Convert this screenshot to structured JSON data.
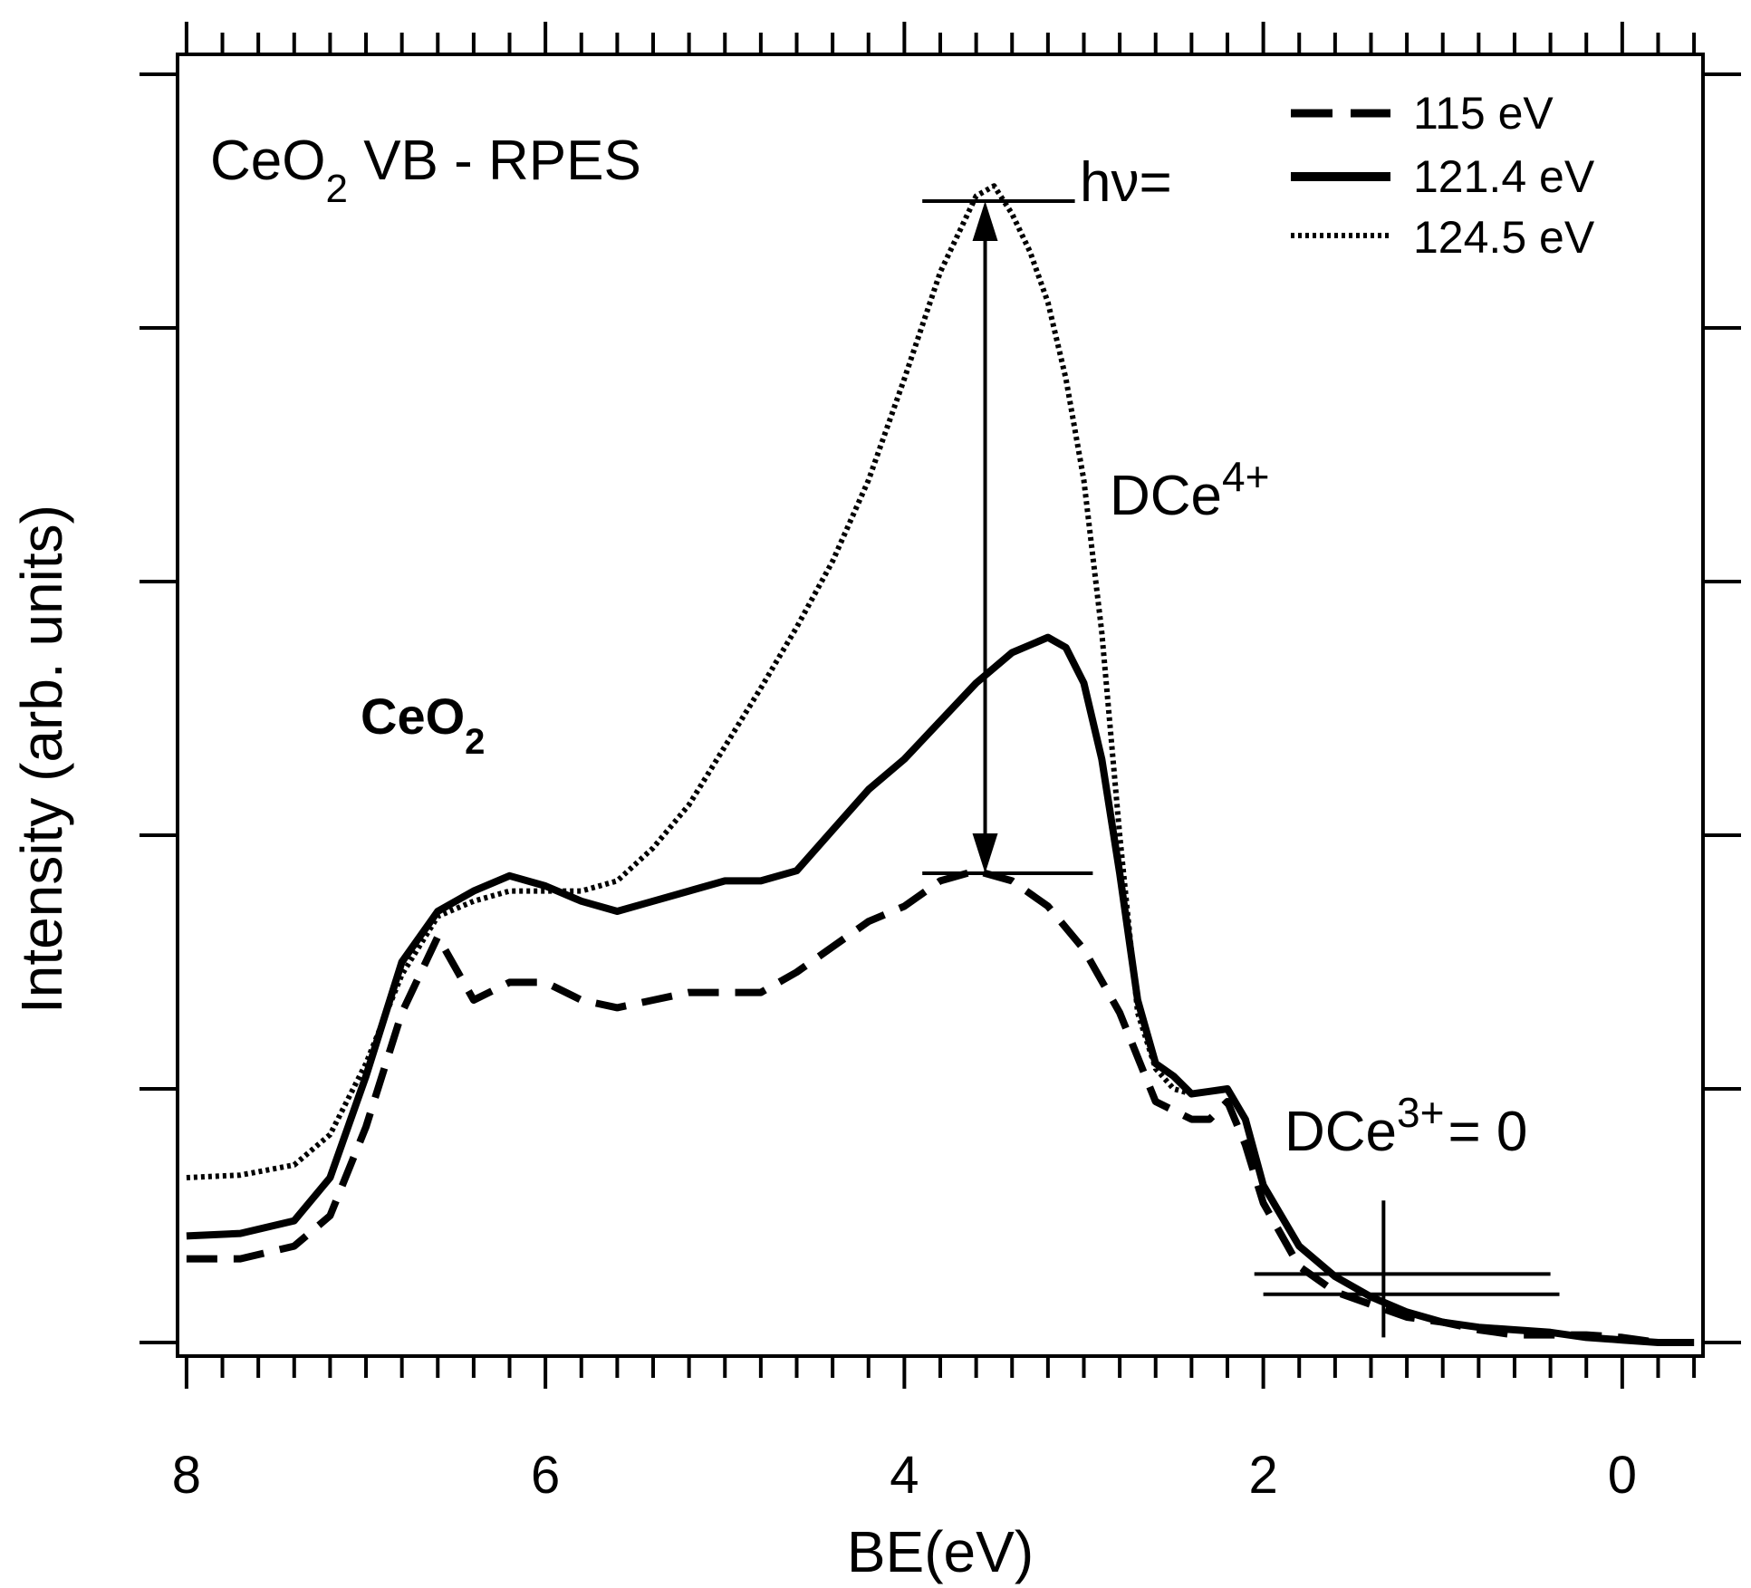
{
  "chart_data": {
    "type": "line",
    "title": "CeO2 VB - RPES",
    "title_main": "CeO",
    "title_sub": "2",
    "title_rest": " VB - RPES",
    "xlabel": "BE(eV)",
    "ylabel": "Intensity (arb. units)",
    "x_reversed": true,
    "xlim": [
      8.05,
      -0.45
    ],
    "ylim": [
      0,
      5.0
    ],
    "x_ticks": [
      8,
      6,
      4,
      2,
      0
    ],
    "x_tick_labels": [
      "8",
      "6",
      "4",
      "2",
      "0"
    ],
    "x_minor_step": 0.2,
    "y_ticks": [
      0,
      1,
      2,
      3,
      4,
      5
    ],
    "grid": false,
    "legend": {
      "position": "top-right",
      "prefix": "hν=",
      "entries": [
        {
          "label": "115 eV",
          "style": "dashed"
        },
        {
          "label": "121.4 eV",
          "style": "solid"
        },
        {
          "label": "124.5 eV",
          "style": "dotted"
        }
      ]
    },
    "series": [
      {
        "name": "115 eV",
        "style": "dashed",
        "x": [
          8.0,
          7.7,
          7.4,
          7.2,
          7.0,
          6.8,
          6.6,
          6.4,
          6.2,
          6.0,
          5.8,
          5.6,
          5.4,
          5.2,
          5.0,
          4.8,
          4.6,
          4.4,
          4.2,
          4.0,
          3.8,
          3.6,
          3.4,
          3.2,
          3.0,
          2.8,
          2.6,
          2.4,
          2.3,
          2.2,
          2.1,
          2.0,
          1.8,
          1.6,
          1.4,
          1.2,
          1.0,
          0.8,
          0.6,
          0.4,
          0.2,
          0.0,
          -0.2,
          -0.4
        ],
        "values": [
          0.33,
          0.33,
          0.38,
          0.5,
          0.85,
          1.3,
          1.6,
          1.35,
          1.42,
          1.42,
          1.35,
          1.32,
          1.35,
          1.38,
          1.38,
          1.38,
          1.46,
          1.56,
          1.66,
          1.72,
          1.82,
          1.86,
          1.82,
          1.72,
          1.55,
          1.3,
          0.95,
          0.88,
          0.88,
          0.95,
          0.78,
          0.55,
          0.3,
          0.2,
          0.15,
          0.1,
          0.08,
          0.05,
          0.03,
          0.03,
          0.03,
          0.02,
          0.0,
          0.0
        ]
      },
      {
        "name": "121.4 eV",
        "style": "solid",
        "x": [
          8.0,
          7.7,
          7.4,
          7.2,
          7.0,
          6.8,
          6.6,
          6.4,
          6.2,
          6.0,
          5.8,
          5.6,
          5.4,
          5.2,
          5.0,
          4.8,
          4.6,
          4.4,
          4.2,
          4.0,
          3.8,
          3.6,
          3.4,
          3.3,
          3.2,
          3.1,
          3.0,
          2.9,
          2.8,
          2.7,
          2.6,
          2.5,
          2.4,
          2.3,
          2.2,
          2.1,
          2.0,
          1.8,
          1.6,
          1.4,
          1.2,
          1.0,
          0.8,
          0.6,
          0.4,
          0.2,
          0.0,
          -0.2,
          -0.4
        ],
        "values": [
          0.42,
          0.43,
          0.48,
          0.65,
          1.05,
          1.5,
          1.7,
          1.78,
          1.84,
          1.8,
          1.74,
          1.7,
          1.74,
          1.78,
          1.82,
          1.82,
          1.86,
          2.02,
          2.18,
          2.3,
          2.45,
          2.6,
          2.72,
          2.75,
          2.78,
          2.74,
          2.6,
          2.3,
          1.85,
          1.35,
          1.1,
          1.05,
          0.98,
          0.99,
          1.0,
          0.88,
          0.62,
          0.38,
          0.26,
          0.18,
          0.12,
          0.08,
          0.06,
          0.05,
          0.04,
          0.02,
          0.01,
          0.0,
          0.0
        ]
      },
      {
        "name": "124.5 eV",
        "style": "dotted",
        "x": [
          8.0,
          7.7,
          7.4,
          7.2,
          7.0,
          6.8,
          6.6,
          6.4,
          6.2,
          6.0,
          5.8,
          5.6,
          5.4,
          5.2,
          5.0,
          4.8,
          4.6,
          4.4,
          4.2,
          4.0,
          3.8,
          3.6,
          3.5,
          3.4,
          3.3,
          3.2,
          3.1,
          3.0,
          2.9,
          2.8,
          2.7,
          2.6,
          2.5,
          2.4,
          2.3,
          2.2,
          2.1,
          2.0,
          1.8,
          1.6,
          1.4,
          1.2,
          1.0,
          0.8,
          0.6,
          0.4,
          0.2,
          0.0,
          -0.2,
          -0.4
        ],
        "values": [
          0.65,
          0.66,
          0.7,
          0.82,
          1.1,
          1.45,
          1.68,
          1.74,
          1.78,
          1.78,
          1.78,
          1.82,
          1.95,
          2.12,
          2.35,
          2.58,
          2.82,
          3.08,
          3.4,
          3.8,
          4.22,
          4.52,
          4.56,
          4.45,
          4.3,
          4.1,
          3.8,
          3.4,
          2.8,
          2.0,
          1.3,
          1.08,
          1.0,
          0.98,
          0.99,
          1.0,
          0.88,
          0.62,
          0.38,
          0.26,
          0.18,
          0.12,
          0.08,
          0.06,
          0.05,
          0.04,
          0.02,
          0.01,
          0.0,
          0.0
        ]
      }
    ],
    "annotations": {
      "peak_label": "CeO2",
      "peak_label_main": "CeO",
      "peak_label_sub": "2",
      "dce4_main": "DCe",
      "dce4_sup": "4+",
      "dce3_main": "DCe",
      "dce3_sup": "3+",
      "dce3_rest": "= 0",
      "arrow_x": 3.55,
      "arrow_top": 4.5,
      "arrow_bottom": 1.85,
      "top_bar": {
        "x_from": 3.9,
        "x_to": 3.05,
        "y": 4.5
      },
      "bottom_bar": {
        "x_from": 3.9,
        "x_to": 2.95,
        "y": 1.85
      },
      "cross_x": 1.33,
      "cross_y_from": 0.02,
      "cross_y_to": 0.56,
      "cross_line1": {
        "x_from": 2.05,
        "x_to": 0.4,
        "y": 0.27
      },
      "cross_line2": {
        "x_from": 2.0,
        "x_to": 0.35,
        "y": 0.19
      }
    }
  }
}
